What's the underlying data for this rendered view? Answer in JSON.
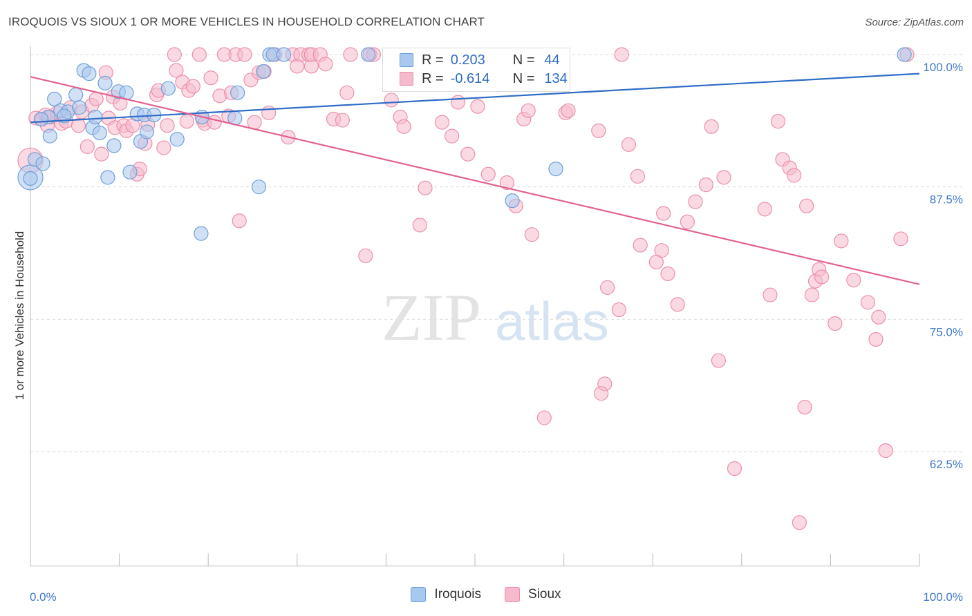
{
  "header": {
    "title": "IROQUOIS VS SIOUX 1 OR MORE VEHICLES IN HOUSEHOLD CORRELATION CHART",
    "source": "Source: ZipAtlas.com"
  },
  "legend_top": {
    "rows": [
      {
        "r_label": "R =",
        "r_value": "0.203",
        "n_label": "N =",
        "n_value": "44"
      },
      {
        "r_label": "R =",
        "r_value": "-0.614",
        "n_label": "N =",
        "n_value": "134"
      }
    ]
  },
  "legend_bottom": {
    "iroquois": "Iroquois",
    "sioux": "Sioux"
  },
  "watermark": {
    "zip": "ZIP",
    "atlas": "atlas"
  },
  "colors": {
    "iroquois_fill": "#a9c8ef",
    "iroquois_stroke": "#6e9fd9",
    "iroquois_line": "#2f6cc6",
    "sioux_fill": "#f7b9cc",
    "sioux_stroke": "#ea8fad",
    "sioux_line": "#e2628f",
    "tick_label": "#3f78c9"
  },
  "chart_data": {
    "type": "scatter",
    "title": "IROQUOIS VS SIOUX 1 OR MORE VEHICLES IN HOUSEHOLD CORRELATION CHART",
    "xlabel": "",
    "ylabel": "1 or more Vehicles in Household",
    "xlim": [
      0,
      100
    ],
    "ylim": [
      51.7,
      101.5
    ],
    "x_tick_labels": [
      "0.0%",
      "100.0%"
    ],
    "y_ticks": [
      62.5,
      75.0,
      87.5,
      100.0
    ],
    "y_tick_labels": [
      "62.5%",
      "75.0%",
      "87.5%",
      "100.0%"
    ],
    "grid": true,
    "series": [
      {
        "name": "Iroquois",
        "trend": {
          "x": [
            0,
            100
          ],
          "y": [
            93.6,
            98.2
          ]
        },
        "points": [
          [
            0.0,
            88.4
          ],
          [
            0.5,
            90.1
          ],
          [
            1.4,
            89.7
          ],
          [
            2.0,
            94.1
          ],
          [
            2.2,
            92.3
          ],
          [
            2.7,
            95.8
          ],
          [
            3.4,
            94.7
          ],
          [
            4.2,
            94.6
          ],
          [
            5.1,
            96.2
          ],
          [
            5.5,
            95.0
          ],
          [
            6.0,
            98.5
          ],
          [
            6.6,
            98.2
          ],
          [
            7.0,
            93.1
          ],
          [
            7.3,
            94.1
          ],
          [
            7.8,
            92.6
          ],
          [
            8.4,
            97.3
          ],
          [
            8.7,
            88.4
          ],
          [
            9.4,
            91.4
          ],
          [
            9.9,
            96.5
          ],
          [
            10.8,
            96.4
          ],
          [
            11.2,
            88.9
          ],
          [
            12.0,
            94.4
          ],
          [
            12.4,
            91.8
          ],
          [
            12.8,
            94.3
          ],
          [
            13.1,
            92.7
          ],
          [
            13.9,
            94.3
          ],
          [
            15.5,
            96.8
          ],
          [
            16.5,
            92.0
          ],
          [
            19.3,
            94.1
          ],
          [
            19.2,
            83.1
          ],
          [
            23.0,
            94.0
          ],
          [
            23.3,
            96.4
          ],
          [
            25.7,
            87.5
          ],
          [
            26.2,
            98.4
          ],
          [
            26.9,
            100.0
          ],
          [
            27.3,
            100.0
          ],
          [
            28.5,
            100.0
          ],
          [
            38.0,
            100.0
          ],
          [
            54.2,
            86.2
          ],
          [
            59.1,
            89.2
          ],
          [
            98.3,
            100.0
          ],
          [
            0.0,
            88.3
          ],
          [
            3.8,
            94.2
          ],
          [
            1.2,
            93.9
          ]
        ]
      },
      {
        "name": "Sioux",
        "trend": {
          "x": [
            0,
            100
          ],
          "y": [
            97.9,
            78.3
          ]
        },
        "points": [
          [
            0.0,
            90.0
          ],
          [
            0.6,
            94.0
          ],
          [
            1.3,
            93.9
          ],
          [
            1.7,
            94.3
          ],
          [
            1.9,
            93.3
          ],
          [
            2.2,
            94.1
          ],
          [
            3.0,
            94.5
          ],
          [
            3.5,
            93.5
          ],
          [
            4.0,
            93.7
          ],
          [
            4.5,
            95.0
          ],
          [
            5.4,
            93.3
          ],
          [
            5.8,
            94.6
          ],
          [
            6.4,
            91.3
          ],
          [
            6.9,
            95.2
          ],
          [
            7.4,
            95.8
          ],
          [
            8.0,
            90.6
          ],
          [
            8.5,
            98.3
          ],
          [
            8.8,
            94.0
          ],
          [
            9.3,
            96.0
          ],
          [
            9.5,
            93.1
          ],
          [
            10.1,
            95.4
          ],
          [
            10.5,
            93.3
          ],
          [
            10.8,
            92.8
          ],
          [
            11.5,
            93.3
          ],
          [
            12.0,
            88.7
          ],
          [
            12.3,
            89.2
          ],
          [
            12.9,
            91.6
          ],
          [
            13.2,
            93.4
          ],
          [
            14.2,
            96.2
          ],
          [
            14.4,
            96.6
          ],
          [
            15.0,
            91.2
          ],
          [
            15.4,
            93.3
          ],
          [
            16.2,
            100.0
          ],
          [
            16.4,
            98.5
          ],
          [
            17.1,
            97.4
          ],
          [
            17.6,
            93.7
          ],
          [
            17.8,
            96.6
          ],
          [
            18.3,
            97.0
          ],
          [
            19.0,
            100.0
          ],
          [
            19.4,
            93.8
          ],
          [
            19.6,
            93.5
          ],
          [
            20.3,
            97.8
          ],
          [
            20.7,
            93.6
          ],
          [
            21.3,
            96.1
          ],
          [
            21.8,
            100.0
          ],
          [
            22.3,
            94.2
          ],
          [
            22.6,
            96.4
          ],
          [
            23.1,
            100.0
          ],
          [
            23.5,
            84.3
          ],
          [
            24.1,
            100.0
          ],
          [
            24.8,
            97.6
          ],
          [
            25.2,
            93.6
          ],
          [
            25.7,
            98.3
          ],
          [
            26.3,
            98.4
          ],
          [
            26.8,
            94.5
          ],
          [
            27.5,
            100.0
          ],
          [
            29.0,
            92.2
          ],
          [
            29.5,
            100.0
          ],
          [
            30.0,
            98.9
          ],
          [
            30.4,
            100.0
          ],
          [
            31.6,
            98.9
          ],
          [
            31.3,
            100.0
          ],
          [
            31.6,
            100.0
          ],
          [
            32.6,
            100.0
          ],
          [
            33.2,
            99.1
          ],
          [
            34.1,
            93.9
          ],
          [
            35.1,
            93.8
          ],
          [
            35.6,
            96.4
          ],
          [
            36.0,
            100.0
          ],
          [
            38.2,
            100.0
          ],
          [
            37.7,
            81.0
          ],
          [
            38.6,
            100.0
          ],
          [
            40.6,
            95.7
          ],
          [
            41.6,
            94.1
          ],
          [
            42.0,
            93.2
          ],
          [
            43.8,
            83.9
          ],
          [
            44.4,
            87.4
          ],
          [
            46.3,
            93.6
          ],
          [
            47.4,
            92.3
          ],
          [
            48.1,
            95.5
          ],
          [
            49.2,
            90.6
          ],
          [
            50.3,
            95.1
          ],
          [
            51.5,
            88.7
          ],
          [
            53.6,
            87.9
          ],
          [
            54.6,
            85.7
          ],
          [
            55.5,
            93.9
          ],
          [
            56.0,
            94.7
          ],
          [
            56.4,
            83.0
          ],
          [
            57.8,
            65.7
          ],
          [
            60.2,
            94.5
          ],
          [
            60.5,
            94.7
          ],
          [
            63.9,
            92.8
          ],
          [
            64.6,
            68.9
          ],
          [
            64.2,
            68.0
          ],
          [
            64.9,
            78.0
          ],
          [
            66.2,
            75.9
          ],
          [
            66.5,
            100.0
          ],
          [
            67.3,
            91.5
          ],
          [
            68.3,
            88.5
          ],
          [
            68.6,
            82.0
          ],
          [
            71.2,
            85.0
          ],
          [
            71.0,
            81.5
          ],
          [
            70.4,
            80.4
          ],
          [
            71.7,
            79.3
          ],
          [
            72.8,
            76.4
          ],
          [
            73.9,
            84.2
          ],
          [
            74.8,
            86.1
          ],
          [
            76.6,
            93.2
          ],
          [
            77.4,
            71.1
          ],
          [
            78.0,
            88.4
          ],
          [
            79.2,
            60.9
          ],
          [
            82.6,
            85.4
          ],
          [
            83.2,
            77.3
          ],
          [
            84.1,
            93.7
          ],
          [
            84.6,
            90.1
          ],
          [
            85.4,
            89.3
          ],
          [
            85.9,
            88.6
          ],
          [
            87.1,
            66.7
          ],
          [
            87.3,
            85.7
          ],
          [
            87.9,
            77.3
          ],
          [
            88.3,
            78.6
          ],
          [
            88.7,
            79.7
          ],
          [
            89.0,
            79.0
          ],
          [
            90.5,
            74.6
          ],
          [
            91.2,
            82.4
          ],
          [
            92.6,
            78.7
          ],
          [
            94.2,
            76.6
          ],
          [
            95.1,
            73.1
          ],
          [
            95.4,
            75.2
          ],
          [
            96.2,
            62.6
          ],
          [
            98.6,
            100.0
          ],
          [
            97.9,
            82.6
          ],
          [
            86.5,
            55.8
          ],
          [
            76.0,
            87.7
          ]
        ]
      }
    ]
  }
}
